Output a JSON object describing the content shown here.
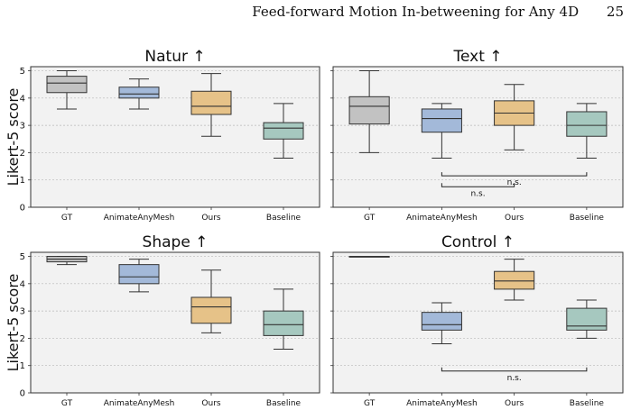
{
  "header": {
    "running_title": "Feed-forward Motion In-betweening for Any 4D",
    "page_number": "25"
  },
  "colors": {
    "GT": "#c2c2c2",
    "AnimateAnyMesh": "#a3b9d9",
    "Ours": "#e6c288",
    "Baseline": "#a6c8bf",
    "panel_bg": "#f2f2f2"
  },
  "chart_data": [
    {
      "type": "box",
      "title": "Natur ↑",
      "ylabel": "Likert-5 score",
      "ylim": [
        0,
        5.15
      ],
      "yticks": [
        "0",
        "1",
        "2",
        "3",
        "4",
        "5"
      ],
      "categories": [
        "GT",
        "AnimateAnyMesh",
        "Ours",
        "Baseline"
      ],
      "boxes": [
        {
          "whisker_low": 3.6,
          "q1": 4.2,
          "median": 4.55,
          "q3": 4.8,
          "whisker_high": 5.0
        },
        {
          "whisker_low": 3.6,
          "q1": 4.0,
          "median": 4.15,
          "q3": 4.4,
          "whisker_high": 4.7
        },
        {
          "whisker_low": 2.6,
          "q1": 3.4,
          "median": 3.7,
          "q3": 4.25,
          "whisker_high": 4.9
        },
        {
          "whisker_low": 1.8,
          "q1": 2.5,
          "median": 2.9,
          "q3": 3.1,
          "whisker_high": 3.8
        }
      ],
      "annotations": []
    },
    {
      "type": "box",
      "title": "Text ↑",
      "ylabel": "",
      "ylim": [
        0,
        5.15
      ],
      "yticks": [],
      "categories": [
        "GT",
        "AnimateAnyMesh",
        "Ours",
        "Baseline"
      ],
      "boxes": [
        {
          "whisker_low": 2.0,
          "q1": 3.05,
          "median": 3.7,
          "q3": 4.05,
          "whisker_high": 5.0
        },
        {
          "whisker_low": 1.8,
          "q1": 2.75,
          "median": 3.25,
          "q3": 3.6,
          "whisker_high": 3.8
        },
        {
          "whisker_low": 2.1,
          "q1": 3.0,
          "median": 3.45,
          "q3": 3.9,
          "whisker_high": 4.5
        },
        {
          "whisker_low": 1.8,
          "q1": 2.6,
          "median": 3.0,
          "q3": 3.5,
          "whisker_high": 3.8
        }
      ],
      "annotations": [
        {
          "label": "n.s.",
          "from": "AnimateAnyMesh",
          "to": "Baseline",
          "y": 1.15
        },
        {
          "label": "n.s.",
          "from": "AnimateAnyMesh",
          "to": "Ours",
          "y": 0.75
        }
      ]
    },
    {
      "type": "box",
      "title": "Shape ↑",
      "ylabel": "Likert-5 score",
      "ylim": [
        0,
        5.15
      ],
      "yticks": [
        "0",
        "1",
        "2",
        "3",
        "4",
        "5"
      ],
      "categories": [
        "GT",
        "AnimateAnyMesh",
        "Ours",
        "Baseline"
      ],
      "boxes": [
        {
          "whisker_low": 4.7,
          "q1": 4.8,
          "median": 4.9,
          "q3": 5.0,
          "whisker_high": 5.0
        },
        {
          "whisker_low": 3.7,
          "q1": 4.0,
          "median": 4.25,
          "q3": 4.7,
          "whisker_high": 4.9
        },
        {
          "whisker_low": 2.2,
          "q1": 2.55,
          "median": 3.15,
          "q3": 3.5,
          "whisker_high": 4.5
        },
        {
          "whisker_low": 1.6,
          "q1": 2.1,
          "median": 2.5,
          "q3": 3.0,
          "whisker_high": 3.8
        }
      ],
      "annotations": []
    },
    {
      "type": "box",
      "title": "Control ↑",
      "ylabel": "",
      "ylim": [
        0,
        5.15
      ],
      "yticks": [],
      "categories": [
        "GT",
        "AnimateAnyMesh",
        "Ours",
        "Baseline"
      ],
      "boxes": [
        {
          "whisker_low": 5.0,
          "q1": 5.0,
          "median": 5.0,
          "q3": 5.0,
          "whisker_high": 5.0
        },
        {
          "whisker_low": 1.8,
          "q1": 2.3,
          "median": 2.5,
          "q3": 2.95,
          "whisker_high": 3.3
        },
        {
          "whisker_low": 3.4,
          "q1": 3.8,
          "median": 4.1,
          "q3": 4.45,
          "whisker_high": 4.9
        },
        {
          "whisker_low": 2.0,
          "q1": 2.3,
          "median": 2.45,
          "q3": 3.1,
          "whisker_high": 3.4
        }
      ],
      "annotations": [
        {
          "label": "n.s.",
          "from": "AnimateAnyMesh",
          "to": "Baseline",
          "y": 0.8
        }
      ]
    }
  ]
}
